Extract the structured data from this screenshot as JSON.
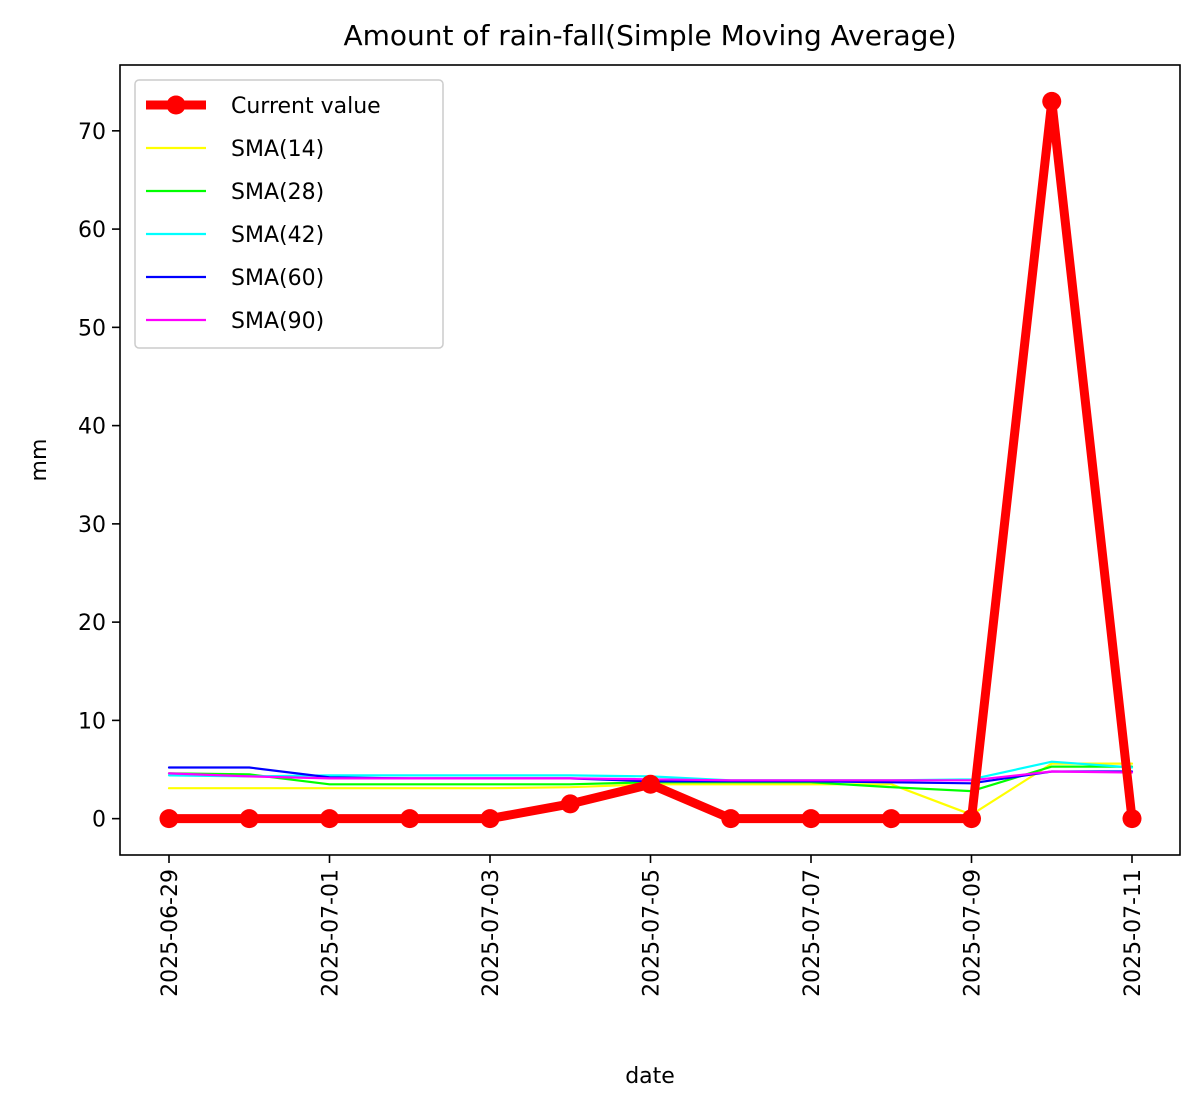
{
  "chart_data": {
    "type": "line",
    "title": "Amount of rain-fall(Simple Moving Average)",
    "xlabel": "date",
    "ylabel": "mm",
    "x": [
      "2025-06-29",
      "2025-06-30",
      "2025-07-01",
      "2025-07-02",
      "2025-07-03",
      "2025-07-04",
      "2025-07-05",
      "2025-07-06",
      "2025-07-07",
      "2025-07-08",
      "2025-07-09",
      "2025-07-10",
      "2025-07-11"
    ],
    "x_tick_labels": [
      "2025-06-29",
      "2025-07-01",
      "2025-07-03",
      "2025-07-05",
      "2025-07-07",
      "2025-07-09",
      "2025-07-11"
    ],
    "y_ticks": [
      0,
      10,
      20,
      30,
      40,
      50,
      60,
      70
    ],
    "ylim": [
      -3.7,
      76.7
    ],
    "grid": false,
    "legend_position": "top-left",
    "series": [
      {
        "name": "Current value",
        "color": "#ff0000",
        "markers": true,
        "values": [
          0,
          0,
          0,
          0,
          0,
          1.5,
          3.5,
          0,
          0,
          0,
          0,
          73,
          0
        ]
      },
      {
        "name": "SMA(14)",
        "color": "#ffff00",
        "markers": false,
        "values": [
          3.1,
          3.1,
          3.1,
          3.1,
          3.1,
          3.2,
          3.5,
          3.5,
          3.5,
          3.5,
          0.4,
          5.6,
          5.6
        ]
      },
      {
        "name": "SMA(28)",
        "color": "#00ff00",
        "markers": false,
        "values": [
          4.6,
          4.5,
          3.5,
          3.5,
          3.5,
          3.5,
          3.7,
          3.7,
          3.7,
          3.2,
          2.8,
          5.3,
          5.3
        ]
      },
      {
        "name": "SMA(42)",
        "color": "#00ffff",
        "markers": false,
        "values": [
          4.4,
          4.3,
          4.4,
          4.4,
          4.4,
          4.4,
          4.3,
          3.9,
          3.9,
          3.9,
          4.0,
          5.8,
          5.2
        ]
      },
      {
        "name": "SMA(60)",
        "color": "#0000ff",
        "markers": false,
        "values": [
          5.2,
          5.2,
          4.2,
          4.1,
          4.1,
          4.1,
          3.8,
          3.8,
          3.8,
          3.7,
          3.6,
          4.8,
          4.8
        ]
      },
      {
        "name": "SMA(90)",
        "color": "#ff00ff",
        "markers": false,
        "values": [
          4.6,
          4.3,
          4.1,
          4.1,
          4.1,
          4.1,
          4.0,
          3.9,
          3.9,
          3.9,
          3.9,
          4.8,
          4.7
        ]
      }
    ]
  }
}
